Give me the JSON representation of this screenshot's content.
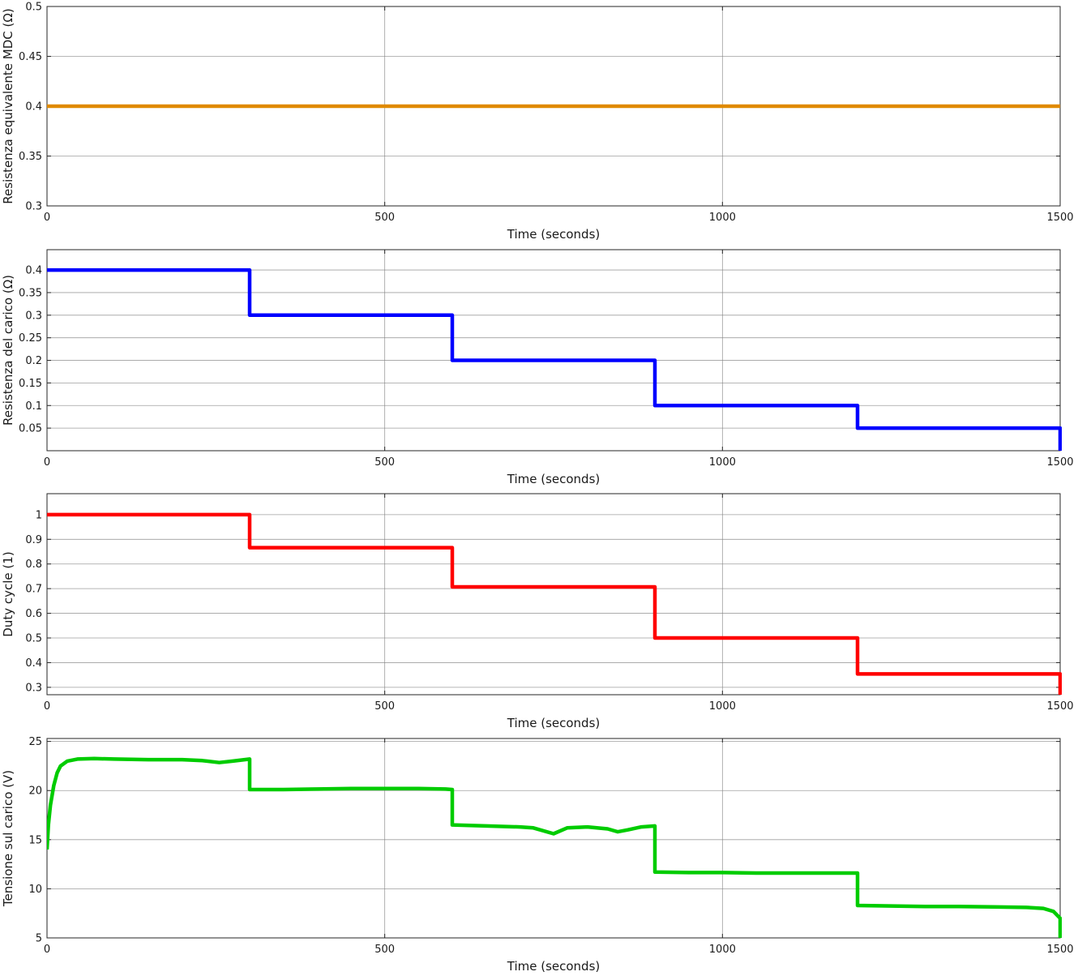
{
  "chart_data": [
    {
      "type": "line",
      "title": "",
      "xlabel": "Time (seconds)",
      "ylabel": "Resistenza equivalente MDC (Ω)",
      "xlim": [
        0,
        1500
      ],
      "ylim": [
        0.3,
        0.5
      ],
      "xticks": [
        0,
        500,
        1000,
        1500
      ],
      "xtick_labels": [
        "0",
        "500",
        "1000",
        "1500"
      ],
      "yticks": [
        0.3,
        0.35,
        0.4,
        0.45,
        0.5
      ],
      "ytick_labels": [
        "0.3",
        "0.35",
        "0.4",
        "0.45",
        "0.5"
      ],
      "grid": true,
      "series": [
        {
          "color": "#e08a00",
          "x": [
            0,
            1500
          ],
          "y": [
            0.4,
            0.4
          ]
        }
      ]
    },
    {
      "type": "line",
      "title": "",
      "xlabel": "Time (seconds)",
      "ylabel": "Resistenza del carico (Ω)",
      "xlim": [
        0,
        1500
      ],
      "ylim": [
        0,
        0.445
      ],
      "xticks": [
        0,
        500,
        1000,
        1500
      ],
      "xtick_labels": [
        "0",
        "500",
        "1000",
        "1500"
      ],
      "yticks": [
        0.05,
        0.1,
        0.15,
        0.2,
        0.25,
        0.3,
        0.35,
        0.4
      ],
      "ytick_labels": [
        "0.05",
        "0.1",
        "0.15",
        "0.2",
        "0.25",
        "0.3",
        "0.35",
        "0.4"
      ],
      "grid": true,
      "series": [
        {
          "color": "#0000ff",
          "x": [
            0,
            300,
            300,
            600,
            600,
            900,
            900,
            1200,
            1200,
            1500,
            1500
          ],
          "y": [
            0.4,
            0.4,
            0.3,
            0.3,
            0.2,
            0.2,
            0.1,
            0.1,
            0.05,
            0.05,
            0.0
          ]
        }
      ]
    },
    {
      "type": "line",
      "title": "",
      "xlabel": "Time (seconds)",
      "ylabel": "Duty cycle (1)",
      "xlim": [
        0,
        1500
      ],
      "ylim": [
        0.27,
        1.085
      ],
      "xticks": [
        0,
        500,
        1000,
        1500
      ],
      "xtick_labels": [
        "0",
        "500",
        "1000",
        "1500"
      ],
      "yticks": [
        0.3,
        0.4,
        0.5,
        0.6,
        0.7,
        0.8,
        0.9,
        1
      ],
      "ytick_labels": [
        "0.3",
        "0.4",
        "0.5",
        "0.6",
        "0.7",
        "0.8",
        "0.9",
        "1"
      ],
      "grid": true,
      "series": [
        {
          "color": "#ff0000",
          "x": [
            0,
            300,
            300,
            600,
            600,
            900,
            900,
            1200,
            1200,
            1500,
            1500
          ],
          "y": [
            1.0,
            1.0,
            0.866,
            0.866,
            0.707,
            0.707,
            0.5,
            0.5,
            0.354,
            0.354,
            0.27
          ]
        }
      ]
    },
    {
      "type": "line",
      "title": "",
      "xlabel": "Time (seconds)",
      "ylabel": "Tensione sul carico (V)",
      "xlim": [
        0,
        1500
      ],
      "ylim": [
        5,
        25.3
      ],
      "xticks": [
        0,
        500,
        1000,
        1500
      ],
      "xtick_labels": [
        "0",
        "500",
        "1000",
        "1500"
      ],
      "yticks": [
        5,
        10,
        15,
        20,
        25
      ],
      "ytick_labels": [
        "5",
        "10",
        "15",
        "20",
        "25"
      ],
      "grid": true,
      "series": [
        {
          "color": "#00cc00",
          "x": [
            0,
            2,
            5,
            10,
            15,
            20,
            30,
            45,
            70,
            100,
            150,
            200,
            230,
            255,
            275,
            300,
            300,
            350,
            400,
            450,
            500,
            550,
            590,
            600,
            600,
            650,
            700,
            720,
            750,
            770,
            800,
            830,
            845,
            860,
            880,
            900,
            900,
            950,
            1000,
            1050,
            1100,
            1150,
            1200,
            1200,
            1250,
            1300,
            1350,
            1400,
            1450,
            1475,
            1490,
            1500,
            1500
          ],
          "y": [
            14,
            16.5,
            18.5,
            20.5,
            21.8,
            22.5,
            23.0,
            23.2,
            23.25,
            23.2,
            23.15,
            23.15,
            23.05,
            22.85,
            23.0,
            23.2,
            20.1,
            20.1,
            20.15,
            20.2,
            20.2,
            20.2,
            20.15,
            20.1,
            16.5,
            16.4,
            16.3,
            16.2,
            15.6,
            16.2,
            16.3,
            16.1,
            15.8,
            16.0,
            16.3,
            16.4,
            11.7,
            11.65,
            11.65,
            11.6,
            11.6,
            11.6,
            11.6,
            8.3,
            8.25,
            8.2,
            8.2,
            8.15,
            8.1,
            8.0,
            7.7,
            7.0,
            5.0
          ]
        }
      ]
    }
  ]
}
